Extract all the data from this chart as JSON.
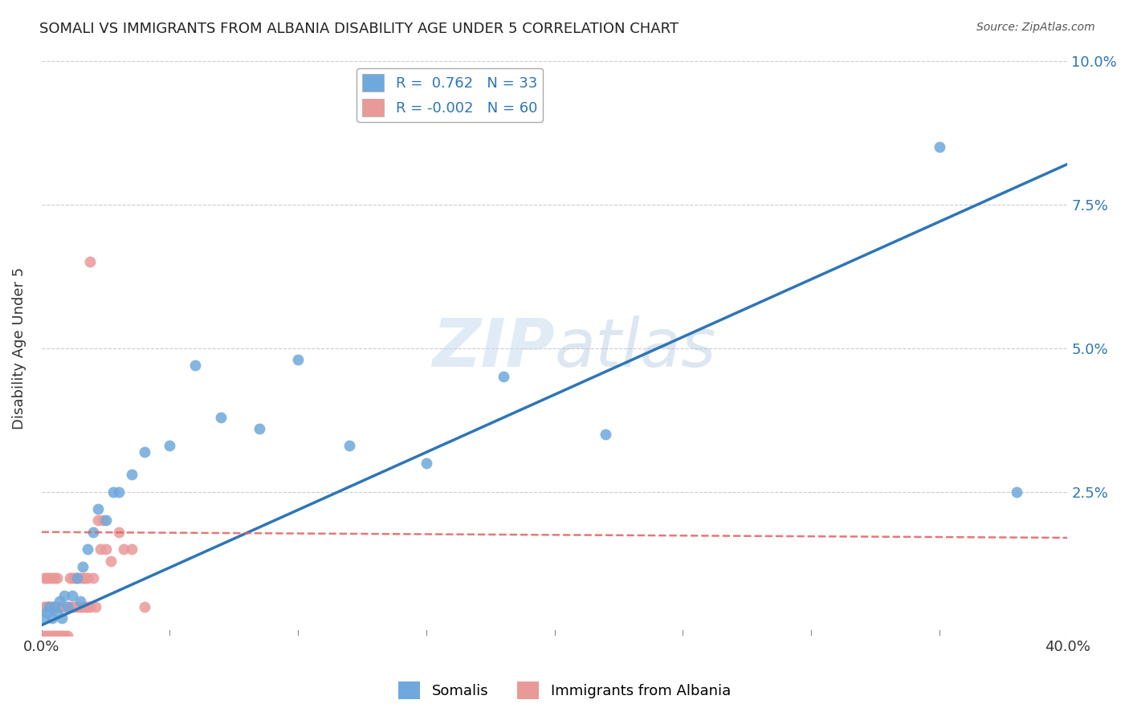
{
  "title": "SOMALI VS IMMIGRANTS FROM ALBANIA DISABILITY AGE UNDER 5 CORRELATION CHART",
  "source": "Source: ZipAtlas.com",
  "ylabel": "Disability Age Under 5",
  "xlim": [
    0,
    0.4
  ],
  "ylim": [
    0,
    0.1
  ],
  "legend_somali_R": "0.762",
  "legend_somali_N": "33",
  "legend_albania_R": "-0.002",
  "legend_albania_N": "60",
  "somali_color": "#6fa8dc",
  "albania_color": "#ea9999",
  "trendline_somali_color": "#2e75b6",
  "trendline_albania_color": "#e06060",
  "watermark_color": "#c5d9ed",
  "somali_x": [
    0.001,
    0.002,
    0.003,
    0.004,
    0.005,
    0.006,
    0.007,
    0.008,
    0.009,
    0.01,
    0.012,
    0.014,
    0.015,
    0.016,
    0.018,
    0.02,
    0.022,
    0.025,
    0.028,
    0.03,
    0.035,
    0.04,
    0.05,
    0.06,
    0.07,
    0.085,
    0.1,
    0.12,
    0.15,
    0.18,
    0.22,
    0.35,
    0.38
  ],
  "somali_y": [
    0.003,
    0.004,
    0.005,
    0.003,
    0.005,
    0.004,
    0.006,
    0.003,
    0.007,
    0.005,
    0.007,
    0.01,
    0.006,
    0.012,
    0.015,
    0.018,
    0.022,
    0.02,
    0.025,
    0.025,
    0.028,
    0.032,
    0.033,
    0.047,
    0.038,
    0.036,
    0.048,
    0.033,
    0.03,
    0.045,
    0.035,
    0.085,
    0.025
  ],
  "albania_x": [
    0.001,
    0.001,
    0.001,
    0.002,
    0.002,
    0.002,
    0.002,
    0.003,
    0.003,
    0.003,
    0.003,
    0.004,
    0.004,
    0.004,
    0.004,
    0.005,
    0.005,
    0.005,
    0.005,
    0.006,
    0.006,
    0.006,
    0.007,
    0.007,
    0.007,
    0.008,
    0.008,
    0.009,
    0.009,
    0.01,
    0.01,
    0.011,
    0.011,
    0.012,
    0.012,
    0.013,
    0.013,
    0.014,
    0.014,
    0.015,
    0.015,
    0.016,
    0.016,
    0.017,
    0.017,
    0.018,
    0.018,
    0.019,
    0.019,
    0.02,
    0.021,
    0.022,
    0.023,
    0.024,
    0.025,
    0.027,
    0.03,
    0.032,
    0.035,
    0.04
  ],
  "albania_y": [
    0.0,
    0.005,
    0.01,
    0.0,
    0.005,
    0.005,
    0.01,
    0.0,
    0.005,
    0.005,
    0.01,
    0.0,
    0.005,
    0.005,
    0.01,
    0.0,
    0.005,
    0.005,
    0.01,
    0.0,
    0.005,
    0.01,
    0.0,
    0.005,
    0.005,
    0.0,
    0.005,
    0.0,
    0.005,
    0.0,
    0.005,
    0.005,
    0.01,
    0.005,
    0.01,
    0.005,
    0.01,
    0.005,
    0.01,
    0.005,
    0.01,
    0.005,
    0.01,
    0.005,
    0.01,
    0.005,
    0.01,
    0.005,
    0.065,
    0.01,
    0.005,
    0.02,
    0.015,
    0.02,
    0.015,
    0.013,
    0.018,
    0.015,
    0.015,
    0.005
  ],
  "somali_trendline_x": [
    0.0,
    0.4
  ],
  "somali_trendline_y": [
    0.0018,
    0.082
  ],
  "albania_trendline_x": [
    0.0,
    0.4
  ],
  "albania_trendline_y": [
    0.018,
    0.017
  ]
}
